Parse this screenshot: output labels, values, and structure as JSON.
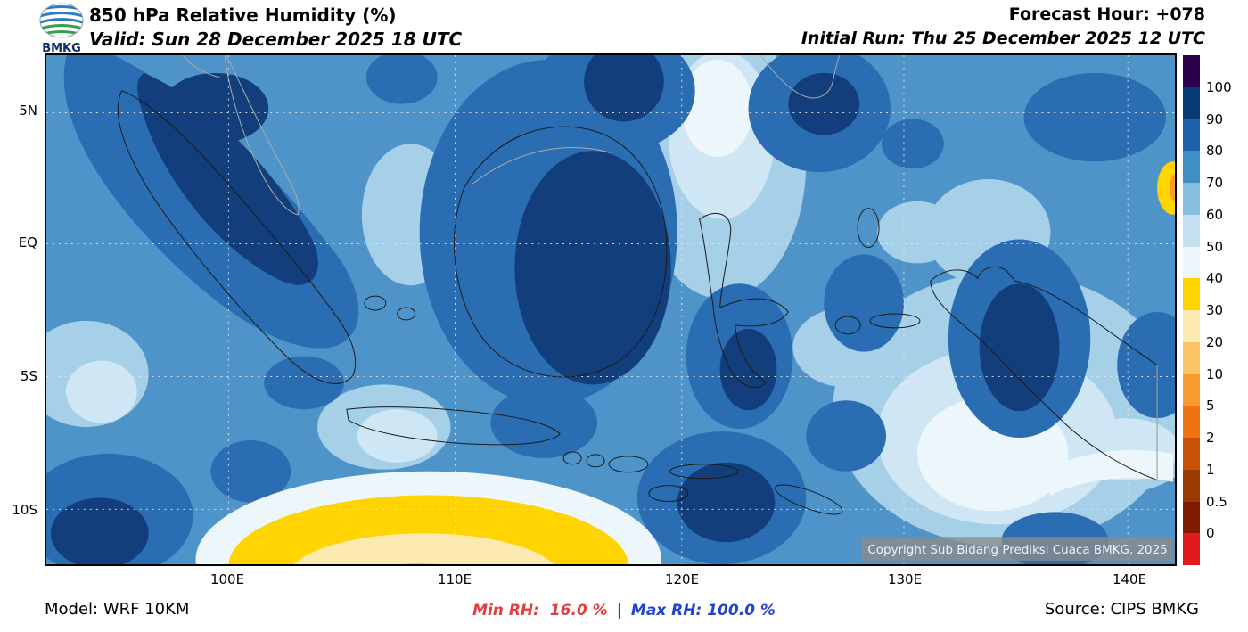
{
  "header": {
    "logo_text": "BMKG",
    "title": "850 hPa Relative Humidity (%)",
    "forecast_hour": "Forecast Hour: +078",
    "valid": "Valid: Sun 28 December 2025 18 UTC",
    "initial_run": "Initial Run: Thu 25 December 2025 12 UTC"
  },
  "map": {
    "lat_labels": [
      "5N",
      "EQ",
      "5S",
      "10S"
    ],
    "lon_labels": [
      "100E",
      "110E",
      "120E",
      "130E",
      "140E"
    ],
    "copyright": "Copyright Sub Bidang Prediksi Cuaca BMKG, 2025"
  },
  "colorbar": {
    "labels": [
      "100",
      "90",
      "80",
      "70",
      "60",
      "50",
      "40",
      "30",
      "20",
      "10",
      "5",
      "2",
      "1",
      "0.5",
      "0"
    ],
    "colors": [
      "#2d004b",
      "#0a3a75",
      "#1d62ab",
      "#3f8ec4",
      "#86bedf",
      "#c3e0ef",
      "#ecf6fb",
      "#ffd400",
      "#fdeab0",
      "#fdc465",
      "#f99b2e",
      "#ee7312",
      "#c85306",
      "#9c3a04",
      "#801b00",
      "#e31a1c"
    ]
  },
  "footer": {
    "model": "Model: WRF 10KM",
    "min_rh": "Min RH:  16.0 %",
    "separator": "|",
    "max_rh": "Max RH: 100.0 %",
    "source": "Source: CIPS BMKG",
    "min_color": "#e04040",
    "max_color": "#2244cc"
  }
}
